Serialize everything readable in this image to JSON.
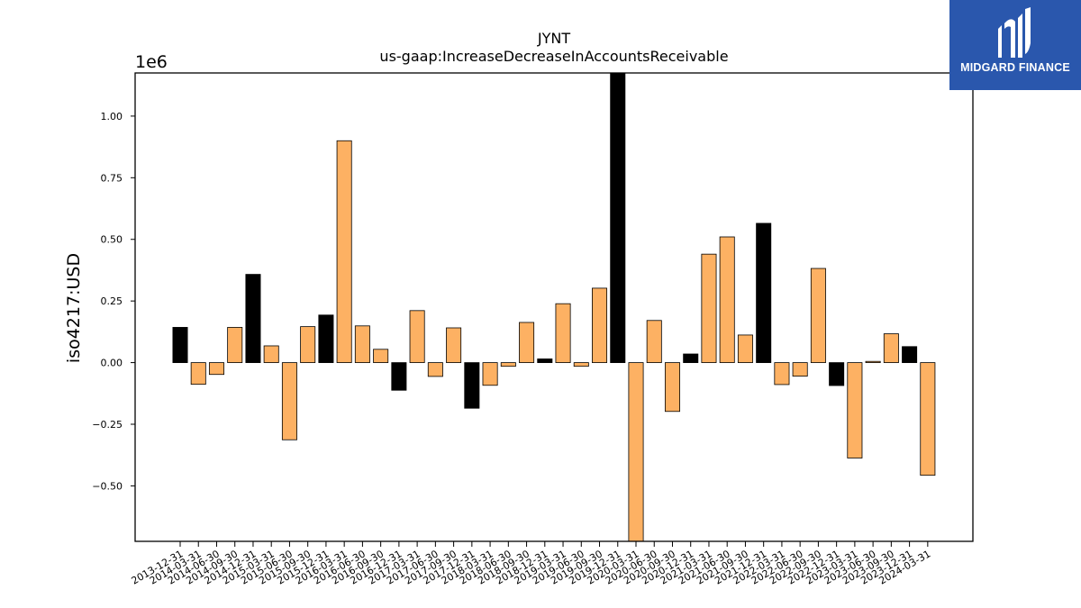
{
  "brand": {
    "name": "MIDGARD FINANCE",
    "background": "#2a57ad"
  },
  "chart_data": {
    "type": "bar",
    "title": "JYNT",
    "subtitle": "us-gaap:IncreaseDecreaseInAccountsReceivable",
    "ylabel": "iso4217:USD",
    "xlabel": "",
    "y_multiplier": "1e6",
    "ylim": [
      -0.725,
      1.175
    ],
    "yticks": [
      "−0.50",
      "−0.25",
      "0.00",
      "0.25",
      "0.50",
      "0.75",
      "1.00"
    ],
    "ytick_values": [
      -0.5,
      -0.25,
      0,
      0.25,
      0.5,
      0.75,
      1.0
    ],
    "grid": false,
    "colors": {
      "highlight": "#000000",
      "normal": "#fdb163",
      "edge": "#000000"
    },
    "categories": [
      "2013-12-31",
      "2014-03-31",
      "2014-06-30",
      "2014-09-30",
      "2014-12-31",
      "2015-03-31",
      "2015-06-30",
      "2015-09-30",
      "2015-12-31",
      "2016-03-31",
      "2016-06-30",
      "2016-09-30",
      "2016-12-31",
      "2017-03-31",
      "2017-06-30",
      "2017-09-30",
      "2017-12-31",
      "2018-03-31",
      "2018-06-30",
      "2018-09-30",
      "2018-12-31",
      "2019-03-31",
      "2019-06-30",
      "2019-09-30",
      "2019-12-31",
      "2020-03-31",
      "2020-06-30",
      "2020-09-30",
      "2020-12-31",
      "2021-03-31",
      "2021-06-30",
      "2021-09-30",
      "2021-12-31",
      "2022-03-31",
      "2022-06-30",
      "2022-09-30",
      "2022-12-31",
      "2023-03-31",
      "2023-06-30",
      "2023-09-30",
      "2023-12-31",
      "2024-03-31"
    ],
    "values": [
      0.143,
      -0.088,
      -0.048,
      0.143,
      0.358,
      0.068,
      -0.313,
      0.146,
      0.193,
      0.9,
      0.149,
      0.054,
      -0.112,
      0.211,
      -0.056,
      0.141,
      -0.185,
      -0.092,
      -0.015,
      0.163,
      0.015,
      0.239,
      -0.015,
      0.302,
      1.175,
      -0.725,
      0.171,
      -0.198,
      0.035,
      0.44,
      0.51,
      0.112,
      0.565,
      -0.089,
      -0.055,
      0.382,
      -0.093,
      -0.387,
      0.005,
      0.117,
      0.065,
      -0.457
    ],
    "highlight": [
      true,
      false,
      false,
      false,
      true,
      false,
      false,
      false,
      true,
      false,
      false,
      false,
      true,
      false,
      false,
      false,
      true,
      false,
      false,
      false,
      true,
      false,
      false,
      false,
      true,
      false,
      false,
      false,
      true,
      false,
      false,
      false,
      true,
      false,
      false,
      false,
      true,
      false,
      false,
      false,
      true,
      false
    ]
  }
}
